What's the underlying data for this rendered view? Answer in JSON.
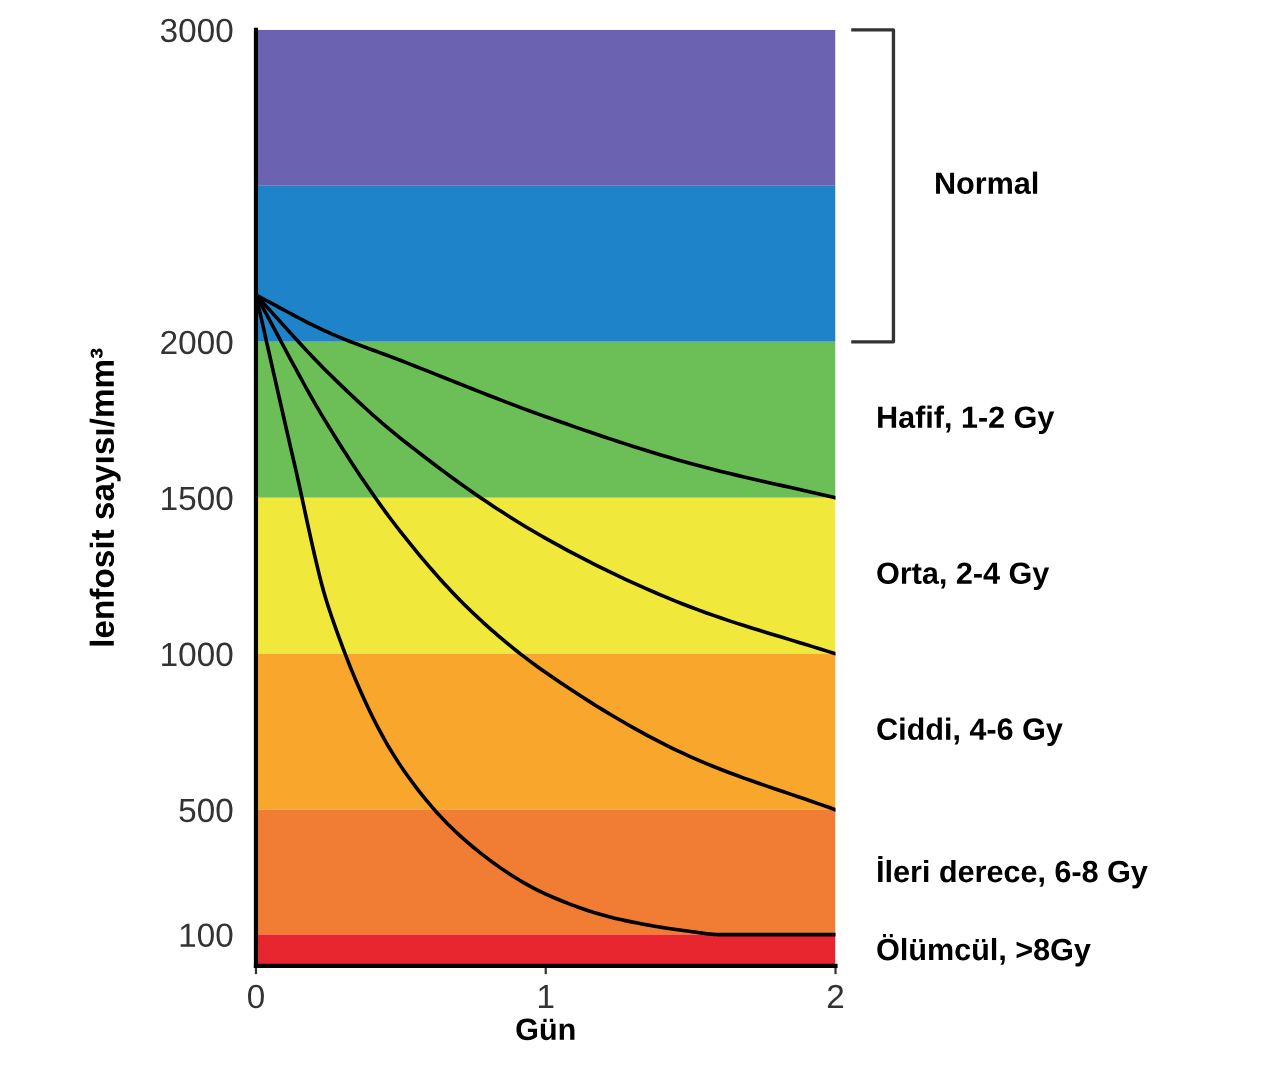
{
  "chart_data": {
    "type": "line",
    "xlabel": "Gün",
    "ylabel": "lenfosit sayısı/mm³",
    "xlim": [
      0,
      2
    ],
    "xticks": [
      0,
      1,
      2
    ],
    "ylim": [
      0,
      3000
    ],
    "yticks": [
      100,
      500,
      1000,
      1500,
      2000,
      3000
    ],
    "grid": false,
    "marker": "none",
    "line_style": "solid",
    "series": [
      {
        "color": "#000000",
        "x": [
          0,
          0.25,
          0.5,
          1,
          1.5,
          2
        ],
        "values": [
          2150,
          2030,
          1940,
          1760,
          1610,
          1500
        ]
      },
      {
        "color": "#000000",
        "x": [
          0,
          0.25,
          0.5,
          1,
          1.5,
          2
        ],
        "values": [
          2150,
          1900,
          1690,
          1370,
          1150,
          1000
        ]
      },
      {
        "color": "#000000",
        "x": [
          0,
          0.25,
          0.5,
          0.75,
          1,
          1.5,
          2
        ],
        "values": [
          2150,
          1730,
          1390,
          1130,
          940,
          670,
          500
        ]
      },
      {
        "color": "#000000",
        "x": [
          0,
          0.13,
          0.25,
          0.5,
          0.75,
          1,
          1.25,
          1.5,
          1.6,
          2
        ],
        "values": [
          2150,
          1620,
          1150,
          640,
          380,
          230,
          150,
          110,
          100,
          100
        ]
      }
    ],
    "bands": [
      {
        "axis": "y",
        "from": 2500,
        "to": 3000,
        "color": "#6b62b2"
      },
      {
        "axis": "y",
        "from": 2000,
        "to": 2500,
        "color": "#1f83c9"
      },
      {
        "axis": "y",
        "from": 1500,
        "to": 2000,
        "color": "#6cbf56",
        "label": "Hafif, 1-2 Gy"
      },
      {
        "axis": "y",
        "from": 1000,
        "to": 1500,
        "color": "#f0e83b",
        "label": "Orta, 2-4 Gy"
      },
      {
        "axis": "y",
        "from": 500,
        "to": 1000,
        "color": "#f9a62d",
        "label": "Ciddi, 4-6 Gy"
      },
      {
        "axis": "y",
        "from": 100,
        "to": 500,
        "color": "#f07d33",
        "label": "İleri derece, 6-8 Gy"
      },
      {
        "axis": "y",
        "from": 0,
        "to": 100,
        "color": "#e8262f",
        "label": "Ölümcül, >8Gy"
      }
    ],
    "annotations": [
      "Normal"
    ]
  }
}
